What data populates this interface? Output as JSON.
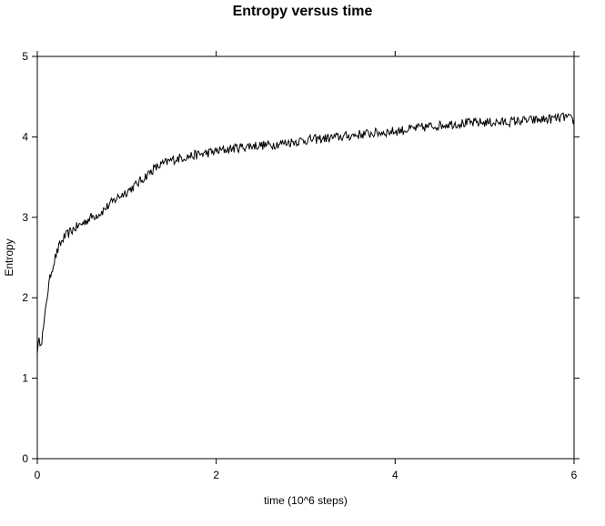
{
  "chart_data": {
    "type": "line",
    "title": "Entropy versus time",
    "xlabel": "time (10^6 steps)",
    "ylabel": "Entropy",
    "xlim": [
      0,
      6
    ],
    "ylim": [
      0,
      5
    ],
    "xticks": [
      "0",
      "2",
      "4",
      "6"
    ],
    "yticks": [
      "0",
      "1",
      "2",
      "3",
      "4",
      "5"
    ],
    "grid": false,
    "line_color": "#000000",
    "series": [
      {
        "x": [
          0.0,
          0.02,
          0.05,
          0.08,
          0.1,
          0.15,
          0.2,
          0.25,
          0.3,
          0.4,
          0.5,
          0.6,
          0.7,
          0.8,
          0.9,
          1.0,
          1.1,
          1.2,
          1.3,
          1.4,
          1.5,
          1.6,
          1.7,
          1.8,
          1.9,
          2.0,
          2.2,
          2.4,
          2.6,
          2.8,
          3.0,
          3.2,
          3.4,
          3.6,
          3.8,
          4.0,
          4.2,
          4.4,
          4.6,
          4.8,
          5.0,
          5.2,
          5.4,
          5.6,
          5.8,
          5.9,
          6.0
        ],
        "y": [
          1.35,
          1.45,
          1.48,
          1.7,
          1.95,
          2.3,
          2.5,
          2.65,
          2.75,
          2.85,
          2.92,
          3.0,
          3.05,
          3.15,
          3.25,
          3.32,
          3.4,
          3.5,
          3.6,
          3.66,
          3.71,
          3.74,
          3.76,
          3.78,
          3.8,
          3.82,
          3.86,
          3.89,
          3.9,
          3.93,
          3.96,
          3.98,
          4.0,
          4.03,
          4.05,
          4.07,
          4.1,
          4.13,
          4.16,
          4.17,
          4.18,
          4.18,
          4.2,
          4.21,
          4.23,
          4.25,
          4.2
        ]
      }
    ]
  }
}
